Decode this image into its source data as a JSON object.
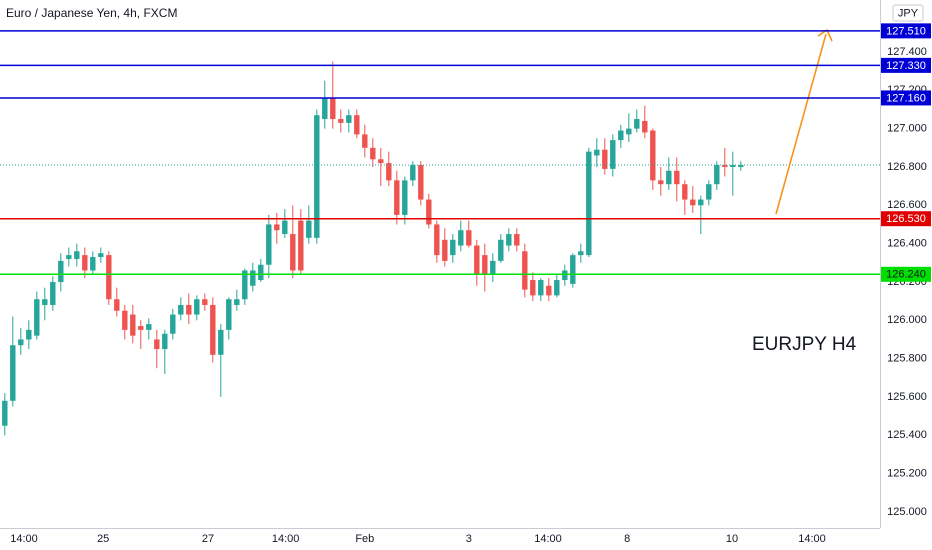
{
  "chart_data": {
    "type": "candlestick",
    "title": "Euro / Japanese Yen, 4h, FXCM",
    "currency": "JPY",
    "annotation": "EURJPY H4",
    "up_color": "#26a69a",
    "down_color": "#ef5350",
    "ohlc": [
      [
        125.45,
        125.62,
        125.4,
        125.58
      ],
      [
        125.58,
        126.02,
        125.55,
        125.87
      ],
      [
        125.87,
        125.96,
        125.82,
        125.9
      ],
      [
        125.9,
        126.0,
        125.85,
        125.95
      ],
      [
        125.92,
        126.15,
        125.9,
        126.11
      ],
      [
        126.08,
        126.17,
        126.0,
        126.11
      ],
      [
        126.08,
        126.23,
        126.05,
        126.2
      ],
      [
        126.2,
        126.35,
        126.15,
        126.31
      ],
      [
        126.32,
        126.38,
        126.28,
        126.34
      ],
      [
        126.32,
        126.4,
        126.28,
        126.36
      ],
      [
        126.34,
        126.38,
        126.22,
        126.26
      ],
      [
        126.26,
        126.36,
        126.24,
        126.33
      ],
      [
        126.33,
        126.38,
        126.3,
        126.35
      ],
      [
        126.34,
        126.36,
        126.08,
        126.11
      ],
      [
        126.11,
        126.17,
        126.02,
        126.05
      ],
      [
        126.05,
        126.08,
        125.9,
        125.95
      ],
      [
        126.03,
        126.08,
        125.88,
        125.92
      ],
      [
        125.97,
        126.0,
        125.85,
        125.95
      ],
      [
        125.95,
        126.01,
        125.9,
        125.98
      ],
      [
        125.9,
        125.95,
        125.75,
        125.85
      ],
      [
        125.85,
        125.95,
        125.72,
        125.93
      ],
      [
        125.93,
        126.06,
        125.9,
        126.03
      ],
      [
        126.03,
        126.12,
        126.0,
        126.08
      ],
      [
        126.08,
        126.14,
        125.98,
        126.03
      ],
      [
        126.03,
        126.13,
        126.0,
        126.11
      ],
      [
        126.11,
        126.14,
        126.05,
        126.08
      ],
      [
        126.08,
        126.12,
        125.78,
        125.82
      ],
      [
        125.82,
        125.98,
        125.6,
        125.95
      ],
      [
        125.95,
        126.12,
        125.9,
        126.11
      ],
      [
        126.08,
        126.16,
        126.05,
        126.11
      ],
      [
        126.11,
        126.27,
        126.08,
        126.26
      ],
      [
        126.18,
        126.3,
        126.15,
        126.26
      ],
      [
        126.21,
        126.32,
        126.2,
        126.29
      ],
      [
        126.29,
        126.55,
        126.22,
        126.5
      ],
      [
        126.5,
        126.56,
        126.4,
        126.47
      ],
      [
        126.45,
        126.58,
        126.43,
        126.52
      ],
      [
        126.45,
        126.6,
        126.22,
        126.26
      ],
      [
        126.52,
        126.58,
        126.24,
        126.26
      ],
      [
        126.43,
        126.6,
        126.4,
        126.52
      ],
      [
        126.43,
        127.1,
        126.4,
        127.07
      ],
      [
        127.05,
        127.25,
        127.0,
        127.16
      ],
      [
        127.16,
        127.35,
        127.0,
        127.05
      ],
      [
        127.05,
        127.1,
        126.98,
        127.03
      ],
      [
        127.03,
        127.1,
        126.98,
        127.07
      ],
      [
        127.07,
        127.1,
        126.95,
        126.97
      ],
      [
        126.97,
        127.02,
        126.85,
        126.9
      ],
      [
        126.9,
        126.95,
        126.8,
        126.84
      ],
      [
        126.84,
        126.9,
        126.7,
        126.82
      ],
      [
        126.82,
        126.88,
        126.7,
        126.73
      ],
      [
        126.73,
        126.78,
        126.5,
        126.55
      ],
      [
        126.55,
        126.75,
        126.5,
        126.73
      ],
      [
        126.73,
        126.83,
        126.7,
        126.81
      ],
      [
        126.81,
        126.83,
        126.6,
        126.63
      ],
      [
        126.63,
        126.66,
        126.48,
        126.5
      ],
      [
        126.5,
        126.52,
        126.3,
        126.34
      ],
      [
        126.42,
        126.48,
        126.28,
        126.31
      ],
      [
        126.34,
        126.45,
        126.3,
        126.42
      ],
      [
        126.39,
        126.52,
        126.36,
        126.47
      ],
      [
        126.47,
        126.52,
        126.38,
        126.39
      ],
      [
        126.39,
        126.42,
        126.18,
        126.24
      ],
      [
        126.34,
        126.4,
        126.15,
        126.24
      ],
      [
        126.24,
        126.35,
        126.2,
        126.31
      ],
      [
        126.31,
        126.45,
        126.3,
        126.42
      ],
      [
        126.39,
        126.48,
        126.36,
        126.45
      ],
      [
        126.45,
        126.48,
        126.36,
        126.39
      ],
      [
        126.36,
        126.4,
        126.12,
        126.16
      ],
      [
        126.21,
        126.25,
        126.1,
        126.13
      ],
      [
        126.13,
        126.22,
        126.1,
        126.21
      ],
      [
        126.18,
        126.22,
        126.1,
        126.13
      ],
      [
        126.13,
        126.24,
        126.12,
        126.21
      ],
      [
        126.21,
        126.29,
        126.18,
        126.26
      ],
      [
        126.19,
        126.35,
        126.17,
        126.34
      ],
      [
        126.34,
        126.4,
        126.3,
        126.36
      ],
      [
        126.34,
        126.9,
        126.33,
        126.88
      ],
      [
        126.86,
        126.95,
        126.8,
        126.89
      ],
      [
        126.89,
        126.95,
        126.76,
        126.79
      ],
      [
        126.79,
        126.97,
        126.75,
        126.94
      ],
      [
        126.94,
        127.02,
        126.9,
        126.99
      ],
      [
        126.97,
        127.08,
        126.93,
        127.0
      ],
      [
        127.0,
        127.1,
        126.98,
        127.05
      ],
      [
        127.04,
        127.12,
        126.95,
        126.98
      ],
      [
        126.99,
        127.0,
        126.68,
        126.73
      ],
      [
        126.73,
        126.8,
        126.65,
        126.71
      ],
      [
        126.71,
        126.85,
        126.68,
        126.78
      ],
      [
        126.78,
        126.85,
        126.62,
        126.71
      ],
      [
        126.71,
        126.73,
        126.55,
        126.63
      ],
      [
        126.63,
        126.7,
        126.56,
        126.6
      ],
      [
        126.6,
        126.65,
        126.45,
        126.63
      ],
      [
        126.63,
        126.73,
        126.6,
        126.71
      ],
      [
        126.71,
        126.83,
        126.68,
        126.81
      ],
      [
        126.81,
        126.9,
        126.75,
        126.8
      ],
      [
        126.8,
        126.88,
        126.65,
        126.81
      ],
      [
        126.8,
        126.83,
        126.78,
        126.81
      ]
    ],
    "levels": [
      {
        "value": 127.51,
        "label": "127.510",
        "color": "#0000d6"
      },
      {
        "value": 127.33,
        "label": "127.330",
        "color": "#0000d6"
      },
      {
        "value": 127.16,
        "label": "127.160",
        "color": "#0000d6"
      },
      {
        "value": 126.53,
        "label": "126.530",
        "color": "#e00000"
      },
      {
        "value": 126.24,
        "label": "126.240",
        "color": "#00e000"
      }
    ],
    "xlim": [
      -0.6,
      109.4
    ],
    "xticks": [
      {
        "value": 2.4,
        "label": "14:00"
      },
      {
        "value": 12.3,
        "label": "25"
      },
      {
        "value": 25.4,
        "label": "27"
      },
      {
        "value": 35.1,
        "label": "14:00"
      },
      {
        "value": 45,
        "label": "Feb"
      },
      {
        "value": 58,
        "label": "3"
      },
      {
        "value": 67.9,
        "label": "14:00"
      },
      {
        "value": 77.8,
        "label": "8"
      },
      {
        "value": 90.9,
        "label": "10"
      },
      {
        "value": 100.9,
        "label": "14:00"
      }
    ],
    "ylim": [
      124.906,
      127.671
    ],
    "yticks": [
      {
        "value": 125.0,
        "label": "125.000"
      },
      {
        "value": 125.2,
        "label": "125.200"
      },
      {
        "value": 125.4,
        "label": "125.400"
      },
      {
        "value": 125.6,
        "label": "125.600"
      },
      {
        "value": 125.8,
        "label": "125.800"
      },
      {
        "value": 126.0,
        "label": "126.000"
      },
      {
        "value": 126.2,
        "label": "126.200"
      },
      {
        "value": 126.4,
        "label": "126.400"
      },
      {
        "value": 126.6,
        "label": "126.600"
      },
      {
        "value": 126.8,
        "label": "126.800"
      },
      {
        "value": 127.0,
        "label": "127.000"
      },
      {
        "value": 127.2,
        "label": "127.200"
      },
      {
        "value": 127.4,
        "label": "127.400"
      }
    ]
  }
}
